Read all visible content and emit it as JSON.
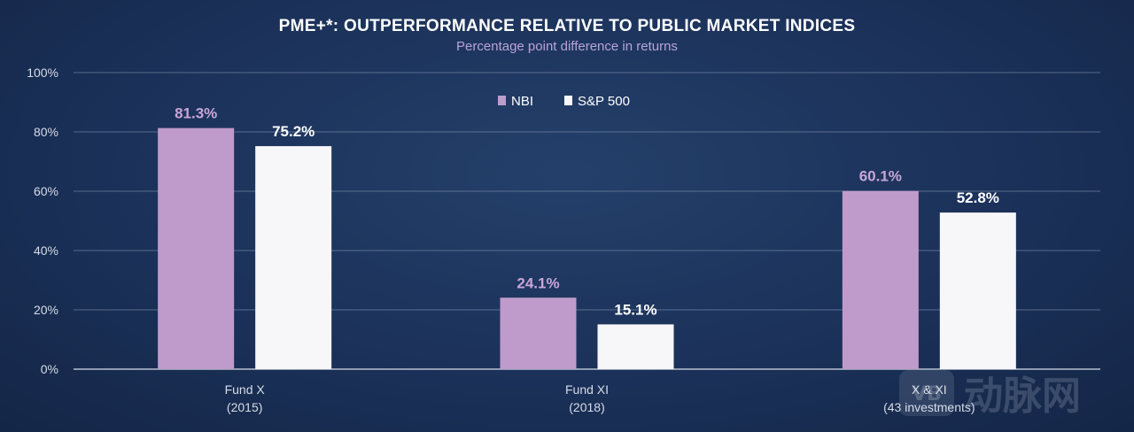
{
  "chart_data": {
    "type": "bar",
    "title": "PME+*: OUTPERFORMANCE RELATIVE TO PUBLIC MARKET INDICES",
    "subtitle": "Percentage point difference in returns",
    "categories": [
      [
        "Fund X",
        "(2015)"
      ],
      [
        "Fund XI",
        "(2018)"
      ],
      [
        "X & XI",
        "(43 investments)"
      ]
    ],
    "series": [
      {
        "name": "NBI",
        "values": [
          81.3,
          24.1,
          60.1
        ],
        "labels": [
          "81.3%",
          "24.1%",
          "60.1%"
        ],
        "color": "#bf9bcb",
        "label_color": "#c8a6d8"
      },
      {
        "name": "S&P 500",
        "values": [
          75.2,
          15.1,
          52.8
        ],
        "labels": [
          "75.2%",
          "15.1%",
          "52.8%"
        ],
        "color": "#f7f7f9",
        "label_color": "#ffffff"
      }
    ],
    "yticks": [
      0,
      20,
      40,
      60,
      80,
      100
    ],
    "ytick_labels": [
      "0%",
      "20%",
      "40%",
      "60%",
      "80%",
      "100%"
    ],
    "ylim": [
      0,
      100
    ],
    "grid": true,
    "legend_position": "top-center",
    "colors": {
      "background": "#1b3159",
      "grid": "#8a9ab8"
    }
  },
  "watermark": {
    "logo_text": "VB",
    "text": "动脉网"
  }
}
